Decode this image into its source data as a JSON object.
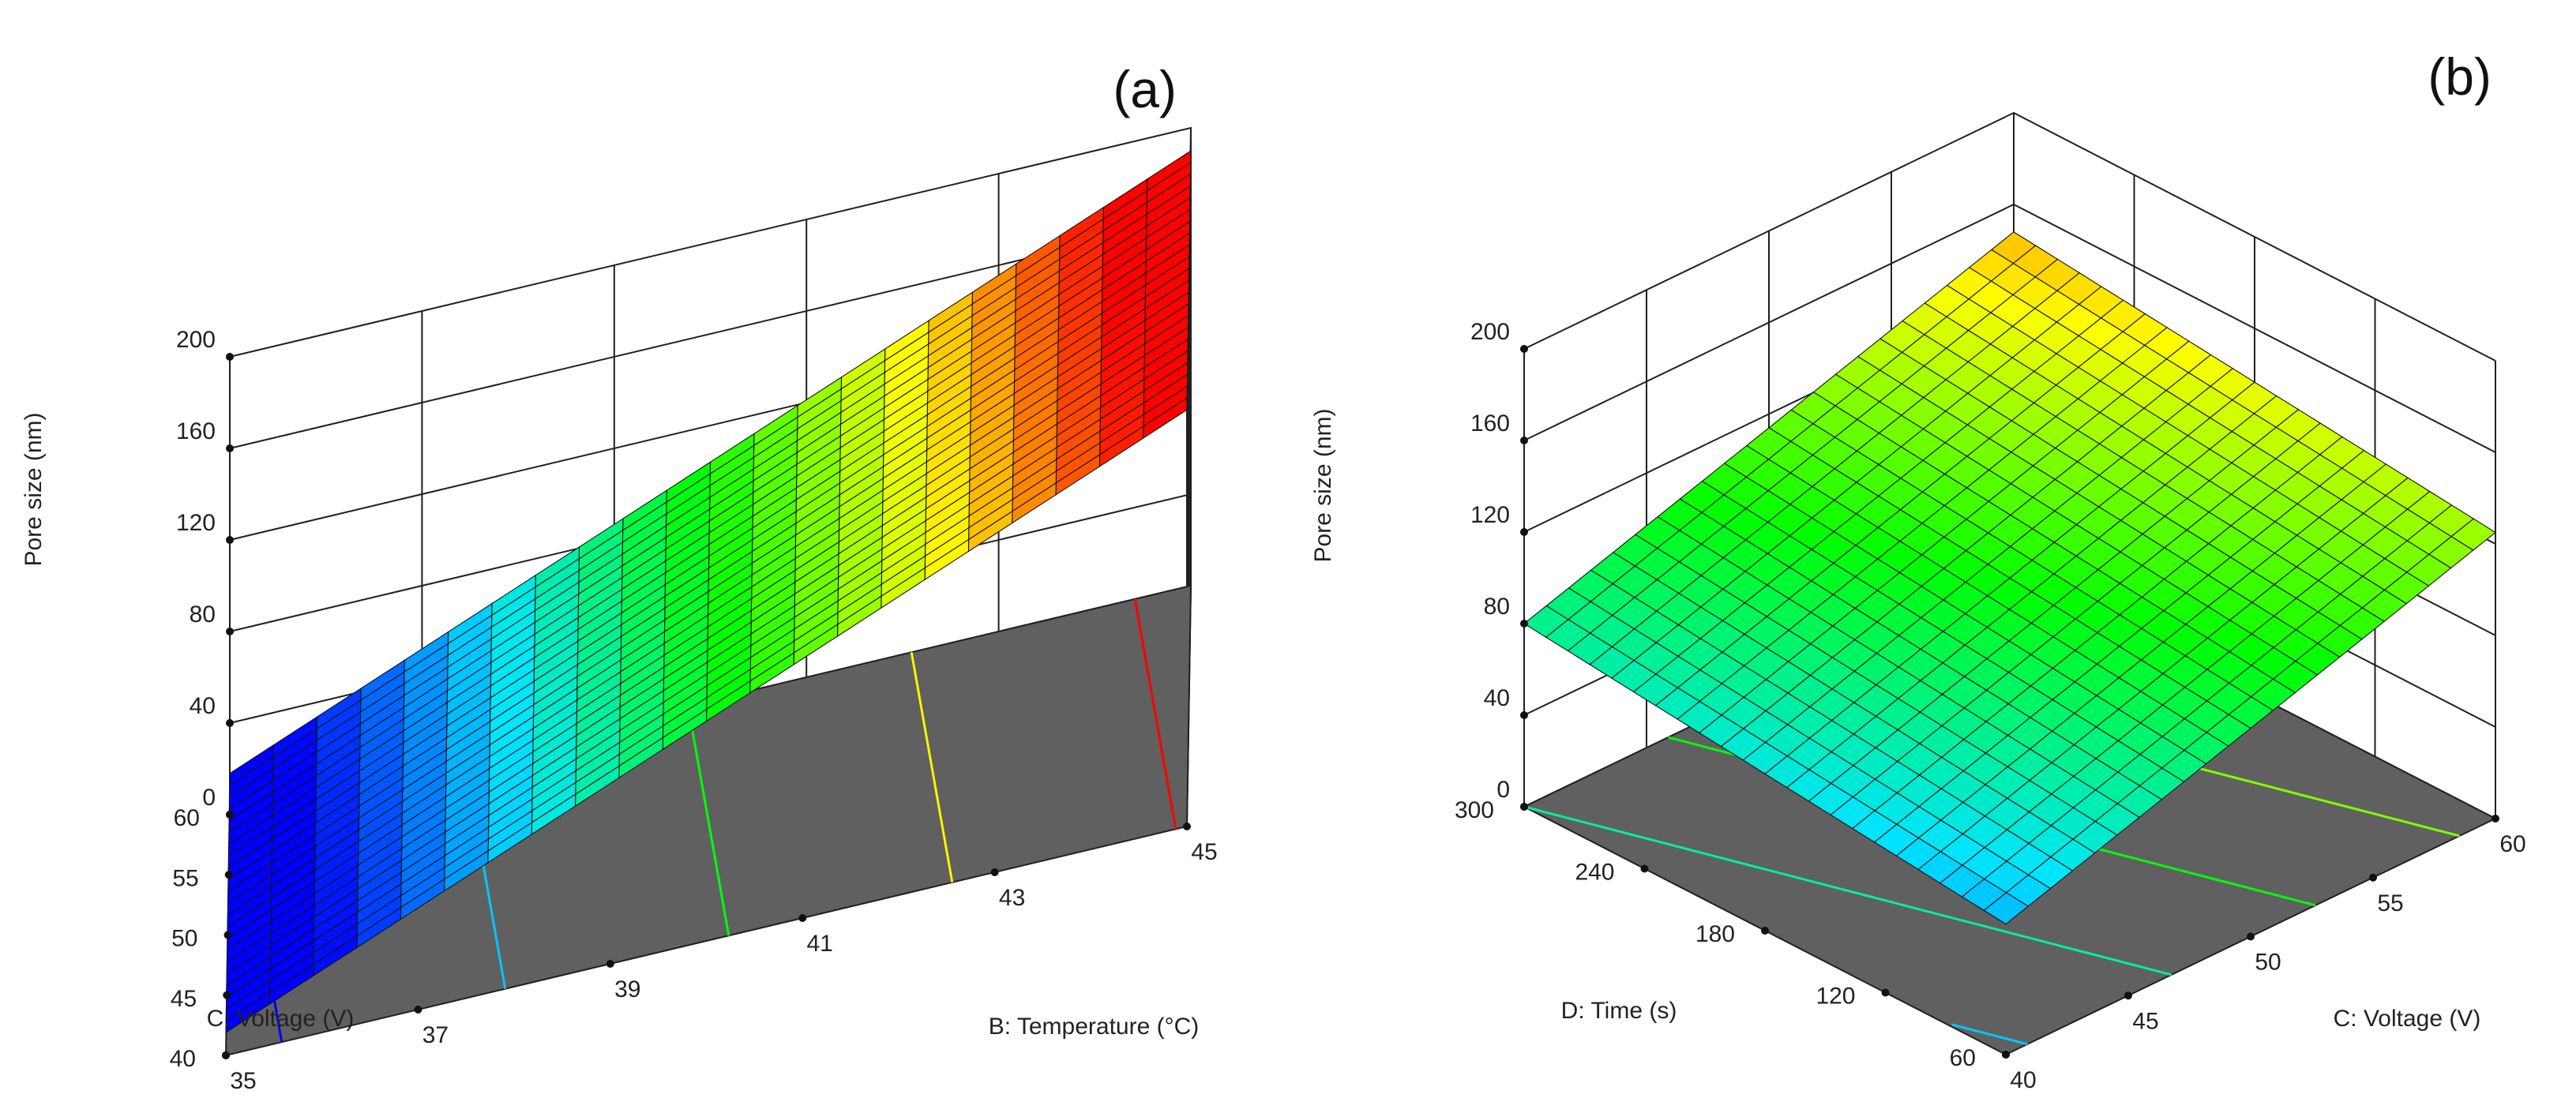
{
  "colors": {
    "floor": "#606060",
    "scale": [
      "#0000ff",
      "#00e5ff",
      "#00ff00",
      "#ffff00",
      "#ff0000"
    ]
  },
  "chart_data": [
    {
      "type": "surface3d",
      "panel_label": "(a)",
      "zlabel": "Pore size (nm)",
      "z_ticks": [
        "0",
        "40",
        "80",
        "120",
        "160",
        "200"
      ],
      "z_tick_values": [
        0,
        40,
        80,
        120,
        160,
        200
      ],
      "zlim": [
        0,
        200
      ],
      "x_axis": {
        "label": "B: Temperature (°C)",
        "range": [
          35,
          45
        ],
        "ticks": [
          "35",
          "37",
          "39",
          "41",
          "43",
          "45"
        ],
        "tick_values": [
          35,
          37,
          39,
          41,
          43,
          45
        ]
      },
      "y_axis": {
        "label": "C: Voltage (V)",
        "range": [
          40,
          60
        ],
        "ticks": [
          "40",
          "45",
          "50",
          "55",
          "60"
        ],
        "tick_values": [
          40,
          45,
          50,
          55,
          60
        ]
      },
      "surface_corners": {
        "x_min_y_min": 10,
        "x_max_y_min": 182,
        "x_min_y_max": 18,
        "x_max_y_max": 190
      },
      "color_range": [
        28,
        175
      ],
      "contour_levels": [
        20,
        60,
        100,
        140,
        180
      ],
      "grid_divisions": 22
    },
    {
      "type": "surface3d",
      "panel_label": "(b)",
      "zlabel": "Pore size (nm)",
      "z_ticks": [
        "0",
        "40",
        "80",
        "120",
        "160",
        "200"
      ],
      "z_tick_values": [
        0,
        40,
        80,
        120,
        160,
        200
      ],
      "zlim": [
        0,
        200
      ],
      "x_axis": {
        "label": "C: Voltage (V)",
        "range": [
          40,
          60
        ],
        "ticks": [
          "40",
          "45",
          "50",
          "55",
          "60"
        ],
        "tick_values": [
          40,
          45,
          50,
          55,
          60
        ]
      },
      "y_axis": {
        "label": "D: Time (s)",
        "range": [
          60,
          300
        ],
        "ticks": [
          "60",
          "120",
          "180",
          "240",
          "300"
        ],
        "tick_values": [
          60,
          120,
          180,
          240,
          300
        ]
      },
      "surface_corners": {
        "x_min_y_min": 57,
        "x_max_y_min": 125,
        "x_min_y_max": 80,
        "x_max_y_max": 148
      },
      "color_range": [
        28,
        175
      ],
      "contour_levels": [
        60,
        80,
        100,
        120
      ],
      "grid_divisions": 22
    }
  ]
}
